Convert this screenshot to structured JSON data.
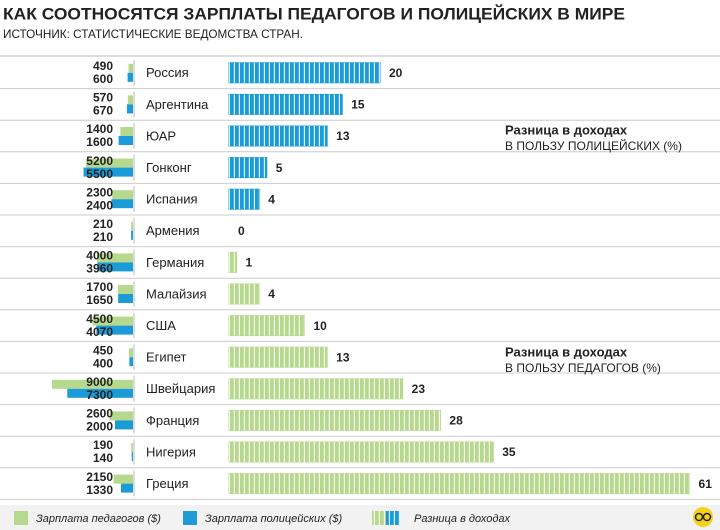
{
  "chart_data": {
    "type": "bar",
    "title": "КАК СООТНОСЯТСЯ ЗАРПЛАТЫ ПЕДАГОГОВ И ПОЛИЦЕЙСКИХ В МИРЕ",
    "subtitle": "ИСТОЧНИК: СТАТИСТИЧЕСКИЕ ВЕДОМСТВА СТРАН.",
    "categories": [
      "Россия",
      "Аргентина",
      "ЮАР",
      "Гонконг",
      "Испания",
      "Армения",
      "Германия",
      "Малайзия",
      "США",
      "Египет",
      "Швейцария",
      "Франция",
      "Нигерия",
      "Греция"
    ],
    "series": [
      {
        "name": "Зарплата педагогов ($)",
        "color": "#b7d98d",
        "values": [
          490,
          570,
          1400,
          5200,
          2300,
          210,
          4000,
          1700,
          4500,
          450,
          9000,
          2600,
          190,
          2150
        ]
      },
      {
        "name": "Зарплата полицейских ($)",
        "color": "#1b9bd7",
        "values": [
          600,
          670,
          1600,
          5500,
          2400,
          210,
          3960,
          1650,
          4070,
          400,
          7300,
          2000,
          140,
          1330
        ]
      },
      {
        "name": "Разница в доходах",
        "values": [
          20,
          15,
          13,
          5,
          4,
          0,
          1,
          4,
          10,
          13,
          23,
          28,
          35,
          61
        ],
        "colors": [
          "#1b9bd7",
          "#1b9bd7",
          "#1b9bd7",
          "#1b9bd7",
          "#1b9bd7",
          "#1b9bd7",
          "#b7d98d",
          "#b7d98d",
          "#b7d98d",
          "#b7d98d",
          "#b7d98d",
          "#b7d98d",
          "#b7d98d",
          "#b7d98d"
        ]
      }
    ],
    "annotations": [
      {
        "title": "Разница в доходах",
        "text": "В ПОЛЬЗУ ПОЛИЦЕЙСКИХ (%)"
      },
      {
        "title": "Разница в доходах",
        "text": "В ПОЛЬЗУ ПЕДАГОГОВ (%)"
      }
    ]
  }
}
